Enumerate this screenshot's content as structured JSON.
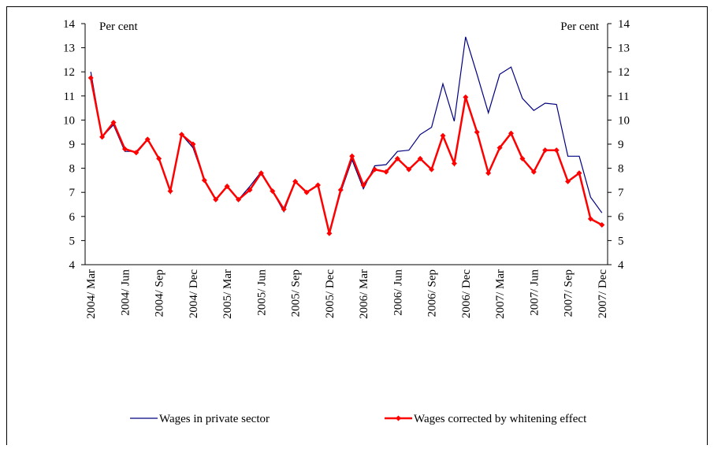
{
  "chart_data": {
    "type": "line",
    "y_label": "Per cent",
    "y2_label": "Per cent",
    "categories": [
      "2004/ Mar",
      null,
      null,
      "2004/ Jun",
      null,
      null,
      "2004/ Sep",
      null,
      null,
      "2004/ Dec",
      null,
      null,
      "2005/ Mar",
      null,
      null,
      "2005/ Jun",
      null,
      null,
      "2005/ Sep",
      null,
      null,
      "2005/ Dec",
      null,
      null,
      "2006/ Mar",
      null,
      null,
      "2006/ Jun",
      null,
      null,
      "2006/ Sep",
      null,
      null,
      "2006/ Dec",
      null,
      null,
      "2007/ Mar",
      null,
      null,
      "2007/ Jun",
      null,
      null,
      "2007/ Sep",
      null,
      null,
      "2007/ Dec"
    ],
    "series": [
      {
        "name": "Wages in private sector",
        "color": "#000080",
        "markers": false,
        "values": [
          12.0,
          9.3,
          9.8,
          8.7,
          8.7,
          9.2,
          8.4,
          7.05,
          9.4,
          8.85,
          7.5,
          6.7,
          7.25,
          6.7,
          7.25,
          7.85,
          7.05,
          6.2,
          7.45,
          7.0,
          7.3,
          5.3,
          7.0,
          8.35,
          7.15,
          8.1,
          8.15,
          8.7,
          8.75,
          9.4,
          9.7,
          11.5,
          9.95,
          13.45,
          11.9,
          10.3,
          11.9,
          12.2,
          10.9,
          10.4,
          10.7,
          10.65,
          8.5,
          8.5,
          6.8,
          6.15
        ]
      },
      {
        "name": "Wages corrected by whitening effect",
        "color": "#ff0000",
        "markers": true,
        "values": [
          11.75,
          9.3,
          9.9,
          8.8,
          8.65,
          9.2,
          8.4,
          7.05,
          9.4,
          9.0,
          7.5,
          6.7,
          7.25,
          6.7,
          7.1,
          7.8,
          7.05,
          6.3,
          7.45,
          7.0,
          7.3,
          5.3,
          7.1,
          8.5,
          7.3,
          7.95,
          7.85,
          8.4,
          7.95,
          8.4,
          7.95,
          9.35,
          8.2,
          10.95,
          9.5,
          7.8,
          8.85,
          9.45,
          8.4,
          7.85,
          8.75,
          8.75,
          7.45,
          7.8,
          5.9,
          5.65
        ]
      }
    ],
    "ylim": [
      4,
      14
    ],
    "yticks": [
      4,
      5,
      6,
      7,
      8,
      9,
      10,
      11,
      12,
      13,
      14
    ],
    "y2lim": [
      4,
      14
    ],
    "y2ticks": [
      4,
      5,
      6,
      7,
      8,
      9,
      10,
      11,
      12,
      13,
      14
    ],
    "grid": false,
    "legend": "bottom"
  }
}
